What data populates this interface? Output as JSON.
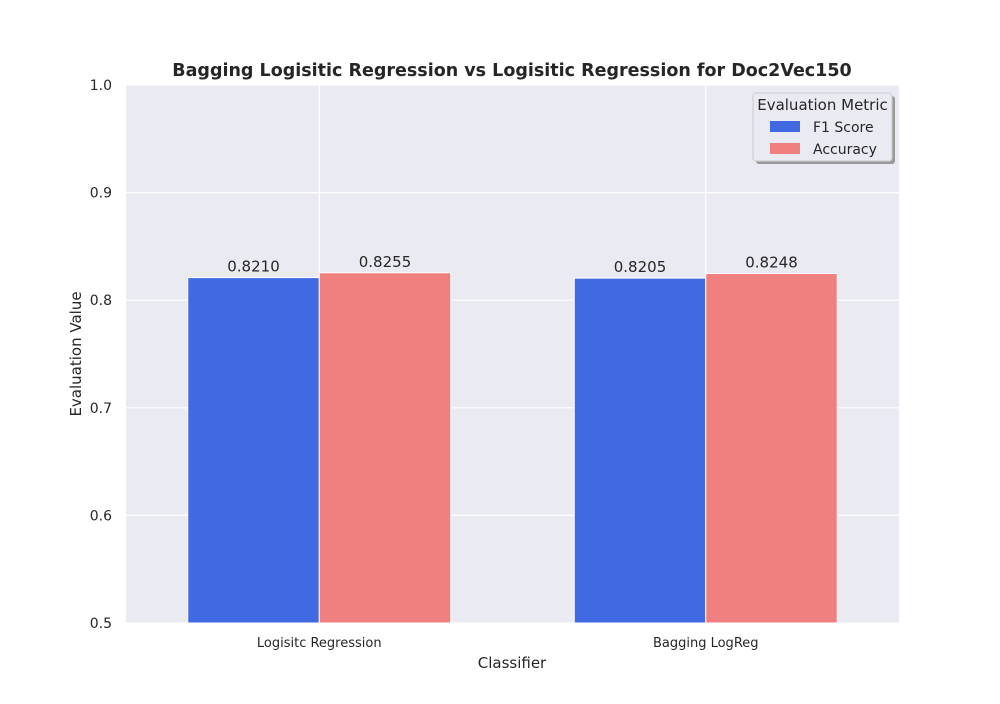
{
  "chart_data": {
    "type": "bar",
    "title": "Bagging Logisitic Regression vs Logisitic Regression for Doc2Vec150",
    "xlabel": "Classifier",
    "ylabel": "Evaluation Value",
    "categories": [
      "Logisitc Regression",
      "Bagging LogReg"
    ],
    "series": [
      {
        "name": "F1 Score",
        "values": [
          0.821,
          0.8205
        ],
        "labels": [
          "0.8210",
          "0.8205"
        ],
        "color": "#4169e1"
      },
      {
        "name": "Accuracy",
        "values": [
          0.8255,
          0.8248
        ],
        "labels": [
          "0.8255",
          "0.8248"
        ],
        "color": "#f08080"
      }
    ],
    "ylim": [
      0.5,
      1.0
    ],
    "yticks": [
      "0.5",
      "0.6",
      "0.7",
      "0.8",
      "0.9",
      "1.0"
    ],
    "grid": true,
    "legend": {
      "title": "Evaluation Metric",
      "placement": "top-right"
    },
    "colors": {
      "plot_background": "#eaeaf2",
      "grid": "#ffffff",
      "text": "#262626"
    }
  }
}
